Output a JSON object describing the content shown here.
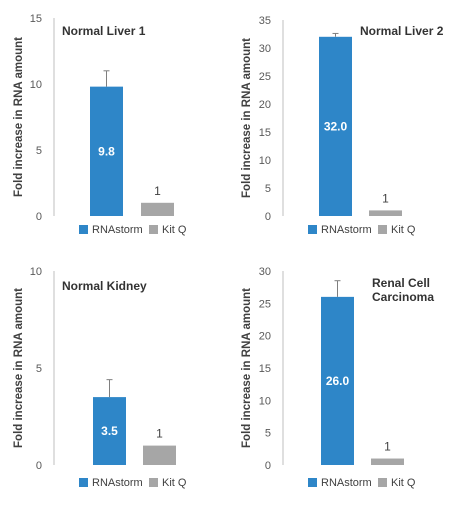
{
  "colors": {
    "rnastorm": "#2E86C8",
    "kitq": "#A6A6A6",
    "axis": "#BFBFBF",
    "error": "#7F7F7F"
  },
  "chart_data": [
    {
      "type": "bar",
      "title": "Normal Liver 1",
      "ylabel": "Fold increase in RNA amount",
      "categories": [
        "RNAstorm",
        "Kit Q"
      ],
      "values": [
        9.8,
        1
      ],
      "data_labels": [
        "9.8",
        "1"
      ],
      "error_upper": [
        11.0,
        null
      ],
      "ylim": [
        0,
        15
      ],
      "yticks": [
        "0",
        "5",
        "10",
        "15"
      ],
      "legend": [
        "RNAstorm",
        "Kit Q"
      ],
      "legend_position": "bottom",
      "grid": false
    },
    {
      "type": "bar",
      "title": "Normal Liver 2",
      "ylabel": "Fold increase in RNA amount",
      "categories": [
        "RNAstorm",
        "Kit Q"
      ],
      "values": [
        32.0,
        1
      ],
      "data_labels": [
        "32.0",
        "1"
      ],
      "error_upper": [
        32.6,
        null
      ],
      "ylim": [
        0,
        35
      ],
      "yticks": [
        "0",
        "5",
        "10",
        "15",
        "20",
        "25",
        "30",
        "35"
      ],
      "legend": [
        "RNAstorm",
        "Kit Q"
      ],
      "legend_position": "bottom",
      "grid": false
    },
    {
      "type": "bar",
      "title": "Normal Kidney",
      "ylabel": "Fold increase in RNA amount",
      "categories": [
        "RNAstorm",
        "Kit Q"
      ],
      "values": [
        3.5,
        1
      ],
      "data_labels": [
        "3.5",
        "1"
      ],
      "error_upper": [
        4.4,
        null
      ],
      "ylim": [
        0,
        10
      ],
      "yticks": [
        "0",
        "5",
        "10"
      ],
      "legend": [
        "RNAstorm",
        "Kit Q"
      ],
      "legend_position": "bottom",
      "grid": false
    },
    {
      "type": "bar",
      "title": "Renal Cell Carcinoma",
      "title_lines": [
        "Renal Cell",
        "Carcinoma"
      ],
      "ylabel": "Fold increase in RNA amount",
      "categories": [
        "RNAstorm",
        "Kit Q"
      ],
      "values": [
        26.0,
        1
      ],
      "data_labels": [
        "26.0",
        "1"
      ],
      "error_upper": [
        28.5,
        null
      ],
      "ylim": [
        0,
        30
      ],
      "yticks": [
        "0",
        "5",
        "10",
        "15",
        "20",
        "25",
        "30"
      ],
      "legend": [
        "RNAstorm",
        "Kit Q"
      ],
      "legend_position": "bottom",
      "grid": false
    }
  ]
}
